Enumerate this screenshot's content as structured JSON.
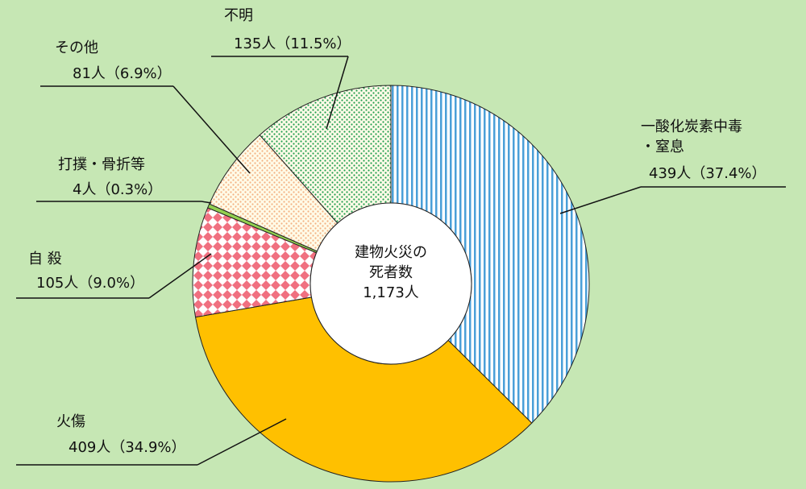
{
  "chart_data": {
    "type": "donut",
    "center_label": [
      "建物火災の",
      "死者数"
    ],
    "total_label": "1,173人",
    "categories": [
      "一酸化炭素中毒\n・窒息",
      "火傷",
      "自 殺",
      "打撲・骨折等",
      "その他",
      "不明"
    ],
    "values": [
      439,
      409,
      105,
      4,
      81,
      135
    ],
    "value_labels": [
      "439人（37.4%）",
      "409人（34.9%）",
      "105人（9.0%）",
      "4人（0.3%）",
      "81人（6.9%）",
      "135人（11.5%）"
    ],
    "colors": [
      "#4a9fd8",
      "#ffc000",
      "#f07080",
      "#92d050",
      "#f4b183",
      "#20a050"
    ],
    "patterns": [
      "vertical-lines",
      "solid",
      "checker",
      "solid",
      "dots",
      "dots"
    ]
  }
}
